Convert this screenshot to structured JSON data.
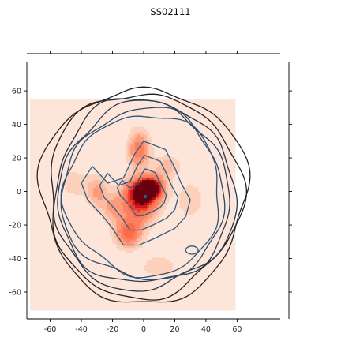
{
  "chart_data": {
    "type": "contour",
    "title": "SS02111",
    "xlabel": "",
    "ylabel": "",
    "xlim": [
      -75,
      75
    ],
    "ylim": [
      -76,
      77
    ],
    "xticks": [
      "-60",
      "-40",
      "-20",
      "0",
      "20",
      "40",
      "60"
    ],
    "yticks": [
      "60",
      "40",
      "20",
      "0",
      "-20",
      "-40",
      "-60"
    ],
    "xtick_values": [
      -60,
      -40,
      -20,
      0,
      20,
      40,
      60
    ],
    "ytick_values": [
      60,
      40,
      20,
      0,
      -20,
      -40,
      -60
    ],
    "grid": false,
    "colors": {
      "fill_background": "#fee5d9",
      "fill_low": "#fcbba1",
      "fill_mid": "#fb6a4a",
      "fill_high": "#cb181d",
      "fill_peak": "#67000d",
      "line_inner": "#2c5f84",
      "line_outer": "#222222"
    },
    "series": [
      {
        "kind": "filled_density",
        "extent": {
          "x": [
            -73,
            59
          ],
          "y": [
            -71,
            55
          ]
        },
        "peak": {
          "x": 5,
          "y": -3
        },
        "marker": {
          "x": 1,
          "y": -3,
          "color": "#2c5f84"
        },
        "blobs": [
          {
            "x": 0,
            "y": 0,
            "sx": 8,
            "sy": 6,
            "w": 1.0
          },
          {
            "x": 5,
            "y": 3,
            "sx": 5,
            "sy": 4,
            "w": 0.75
          },
          {
            "x": -3,
            "y": 25,
            "sx": 5,
            "sy": 8,
            "w": 0.55
          },
          {
            "x": -10,
            "y": -25,
            "sx": 6,
            "sy": 6,
            "w": 0.6
          },
          {
            "x": -3,
            "y": -10,
            "sx": 8,
            "sy": 8,
            "w": 0.55
          },
          {
            "x": -30,
            "y": 0,
            "sx": 5,
            "sy": 7,
            "w": 0.35
          },
          {
            "x": -20,
            "y": -10,
            "sx": 5,
            "sy": 6,
            "w": 0.3
          },
          {
            "x": 15,
            "y": 15,
            "sx": 6,
            "sy": 5,
            "w": 0.28
          },
          {
            "x": 30,
            "y": -5,
            "sx": 6,
            "sy": 8,
            "w": 0.22
          },
          {
            "x": -45,
            "y": 5,
            "sx": 6,
            "sy": 6,
            "w": 0.2
          },
          {
            "x": 10,
            "y": -45,
            "sx": 10,
            "sy": 6,
            "w": 0.18
          }
        ]
      },
      {
        "kind": "contour_lines",
        "outer": {
          "cx": 0,
          "cy": -2,
          "rx": [
            66,
            62,
            58,
            55,
            52,
            50
          ],
          "ry": [
            64,
            61,
            57,
            54,
            51,
            48
          ]
        },
        "inner_points": [
          [
            -35,
            15
          ],
          [
            -25,
            5
          ],
          [
            -15,
            8
          ],
          [
            -8,
            22
          ],
          [
            -2,
            30
          ],
          [
            12,
            25
          ],
          [
            18,
            14
          ],
          [
            22,
            5
          ],
          [
            28,
            -5
          ],
          [
            25,
            -15
          ],
          [
            18,
            -22
          ],
          [
            5,
            -28
          ],
          [
            -5,
            -32
          ],
          [
            -15,
            -32
          ],
          [
            -22,
            -22
          ],
          [
            -28,
            -15
          ],
          [
            -38,
            -5
          ],
          [
            -42,
            5
          ]
        ],
        "small_ellipse": {
          "cx": 31,
          "cy": -35,
          "rx": 4,
          "ry": 2.4
        }
      }
    ]
  }
}
